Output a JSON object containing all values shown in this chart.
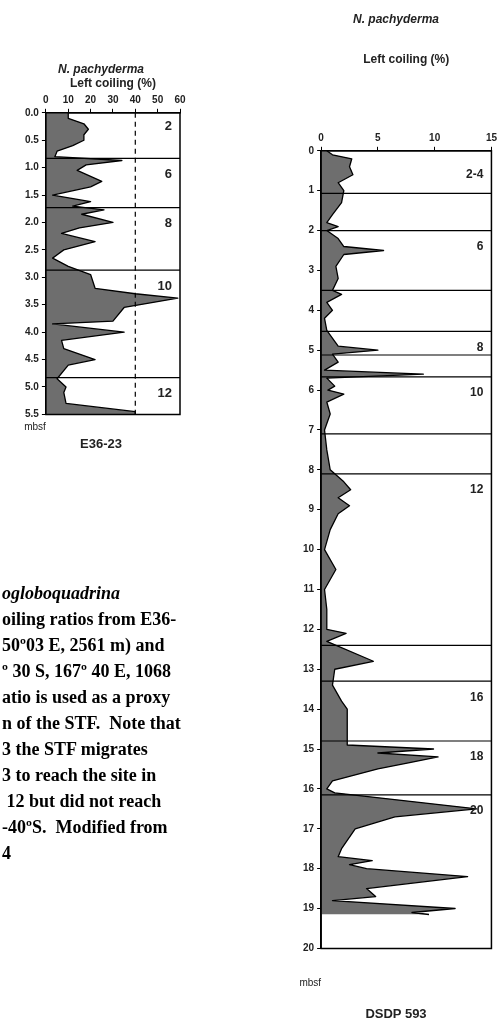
{
  "chart_data": [
    {
      "type": "area",
      "orientation": "horizontal",
      "title": "N. pachyderma",
      "xlabel": "Left coiling (%)",
      "ylabel": "mbsf",
      "subtitle": "E36-23",
      "xlim": [
        0,
        60
      ],
      "xticks": [
        0,
        10,
        20,
        30,
        40,
        50,
        60
      ],
      "ylim": [
        5.5,
        0
      ],
      "yticks": [
        {
          "value": 0,
          "label": "0.0"
        },
        {
          "value": 0.5,
          "label": "0.5"
        },
        {
          "value": 1,
          "label": "1.0"
        },
        {
          "value": 1.5,
          "label": "1.5"
        },
        {
          "value": 2,
          "label": "2.0"
        },
        {
          "value": 2.5,
          "label": "2.5"
        },
        {
          "value": 3,
          "label": "3.0"
        },
        {
          "value": 3.5,
          "label": "3.5"
        },
        {
          "value": 4,
          "label": "4.0"
        },
        {
          "value": 4.5,
          "label": "4.5"
        },
        {
          "value": 5,
          "label": "5.0"
        },
        {
          "value": 5.5,
          "label": "5.5"
        }
      ],
      "grid": false,
      "series": [
        {
          "color": "#6e6e6e",
          "x": [
            0,
            0.1,
            0.2,
            0.3,
            0.4,
            0.5,
            0.6,
            0.7,
            0.8,
            0.87,
            0.95,
            1.05,
            1.25,
            1.35,
            1.5,
            1.62,
            1.7,
            1.77,
            1.85,
            2.0,
            2.1,
            2.2,
            2.35,
            2.5,
            2.65,
            2.8,
            2.95,
            3.2,
            3.3,
            3.38,
            3.55,
            3.8,
            3.85,
            4.0,
            4.15,
            4.3,
            4.5,
            4.6,
            4.85,
            5.0,
            5.1,
            5.3,
            5.45,
            5.5
          ],
          "values": [
            10,
            10,
            17,
            19,
            17,
            17,
            12,
            5,
            4,
            34,
            18,
            14,
            25,
            20,
            3,
            20,
            12,
            26,
            16,
            30,
            15,
            7,
            22,
            8,
            3,
            10,
            20,
            22,
            40,
            59,
            35,
            30,
            3,
            35,
            7,
            8,
            22,
            10,
            5,
            9,
            8,
            9,
            40,
            40
          ]
        }
      ],
      "annotations": [
        "2",
        {
          "text": "6",
          "y": 0.83
        },
        {
          "text": "8",
          "y": 1.73
        },
        {
          "text": "10",
          "y": 2.87
        },
        {
          "text": "12",
          "y": 4.83
        }
      ],
      "ref_lines": [
        {
          "axis": "y",
          "value": 0.83
        },
        {
          "axis": "y",
          "value": 1.73
        },
        {
          "axis": "y",
          "value": 2.87
        },
        {
          "axis": "y",
          "value": 4.83
        },
        {
          "axis": "x",
          "value": 40,
          "line_style": "dashed"
        }
      ]
    },
    {
      "type": "area",
      "orientation": "horizontal",
      "title": "N. pachyderma",
      "xlabel": "Left coiling (%)",
      "ylabel": "mbsf",
      "subtitle": "DSDP 593",
      "xlim": [
        0,
        15
      ],
      "xticks": [
        0,
        5,
        10,
        15
      ],
      "ylim": [
        20,
        0
      ],
      "yticks": [
        0,
        1,
        2,
        3,
        4,
        5,
        6,
        7,
        8,
        9,
        10,
        11,
        12,
        13,
        14,
        15,
        16,
        17,
        18,
        19,
        20
      ],
      "grid": false,
      "series": [
        {
          "color": "#6e6e6e",
          "x": [
            0,
            0.1,
            0.2,
            0.4,
            0.6,
            0.8,
            1.0,
            1.3,
            1.6,
            1.8,
            1.9,
            2.0,
            2.2,
            2.4,
            2.5,
            2.6,
            2.9,
            3.2,
            3.5,
            3.6,
            3.8,
            4.0,
            4.2,
            4.5,
            4.9,
            5.0,
            5.1,
            5.3,
            5.5,
            5.6,
            5.7,
            5.9,
            6.0,
            6.1,
            6.3,
            6.6,
            7.0,
            7.5,
            8.0,
            8.3,
            8.5,
            8.7,
            8.9,
            9.1,
            9.5,
            10.0,
            10.5,
            11.0,
            11.5,
            12.0,
            12.1,
            12.3,
            12.8,
            13.0,
            13.4,
            13.8,
            14.0,
            14.9,
            15.0,
            15.1,
            15.2,
            15.5,
            15.8,
            16.0,
            16.1,
            16.5,
            16.7,
            17.0,
            17.5,
            17.7,
            17.8,
            17.9,
            18.0,
            18.2,
            18.5,
            18.7,
            18.8,
            19.0,
            19.1,
            19.15
          ],
          "values": [
            0.5,
            1,
            2.7,
            2.5,
            2.8,
            1.5,
            2,
            1.8,
            1,
            0.5,
            1.5,
            0.5,
            1.5,
            2,
            5.5,
            2,
            1.3,
            1.5,
            1,
            1.8,
            0.5,
            1,
            0.3,
            0.5,
            1.5,
            5,
            1,
            1.5,
            0.3,
            9,
            0.5,
            1.2,
            0.6,
            2,
            0.5,
            0.8,
            0.3,
            0.5,
            0.8,
            2,
            2.6,
            1.5,
            2.5,
            1.5,
            0.8,
            0.3,
            1.3,
            0.3,
            0.5,
            0.5,
            2.2,
            0.5,
            4.6,
            1.2,
            1,
            1.8,
            2.3,
            2.3,
            9.9,
            5,
            10.3,
            5,
            1,
            0.5,
            1.2,
            13.7,
            6.5,
            3,
            1.8,
            1.5,
            4.5,
            2.5,
            4,
            12.9,
            4,
            4.8,
            1,
            11.8,
            8,
            9.5
          ]
        }
      ],
      "annotations": [
        "2-4",
        {
          "text": "6",
          "y": 2.0
        },
        {
          "text": "8",
          "y": 4.53
        },
        {
          "text": "10",
          "y": 5.67
        },
        {
          "text": "12",
          "y": 8.1
        },
        {
          "text": "16",
          "y": 13.3
        },
        {
          "text": "18",
          "y": 14.8
        },
        {
          "text": "20",
          "y": 16.15
        }
      ],
      "ref_lines": [
        {
          "axis": "y",
          "value": 1.07
        },
        {
          "axis": "y",
          "value": 2.0
        },
        {
          "axis": "y",
          "value": 3.5
        },
        {
          "axis": "y",
          "value": 4.53
        },
        {
          "axis": "y",
          "value": 5.12
        },
        {
          "axis": "y",
          "value": 5.67
        },
        {
          "axis": "y",
          "value": 7.1
        },
        {
          "axis": "y",
          "value": 8.1
        },
        {
          "axis": "y",
          "value": 12.4
        },
        {
          "axis": "y",
          "value": 13.3
        },
        {
          "axis": "y",
          "value": 14.8
        },
        {
          "axis": "y",
          "value": 16.15
        }
      ]
    },
    {
      "type": "other",
      "annotations": [
        "ogloboquadrina",
        "oiling ratios from E36-",
        "50º03 E, 2561 m) and",
        "º 30 S, 167º 40 E, 1068",
        "atio is used as a proxy",
        "n of the STF.  Note that",
        "3 the STF migrates",
        "3 to reach the site in",
        " 12 but did not reach",
        "-40ºS.  Modified from",
        "4"
      ]
    }
  ]
}
